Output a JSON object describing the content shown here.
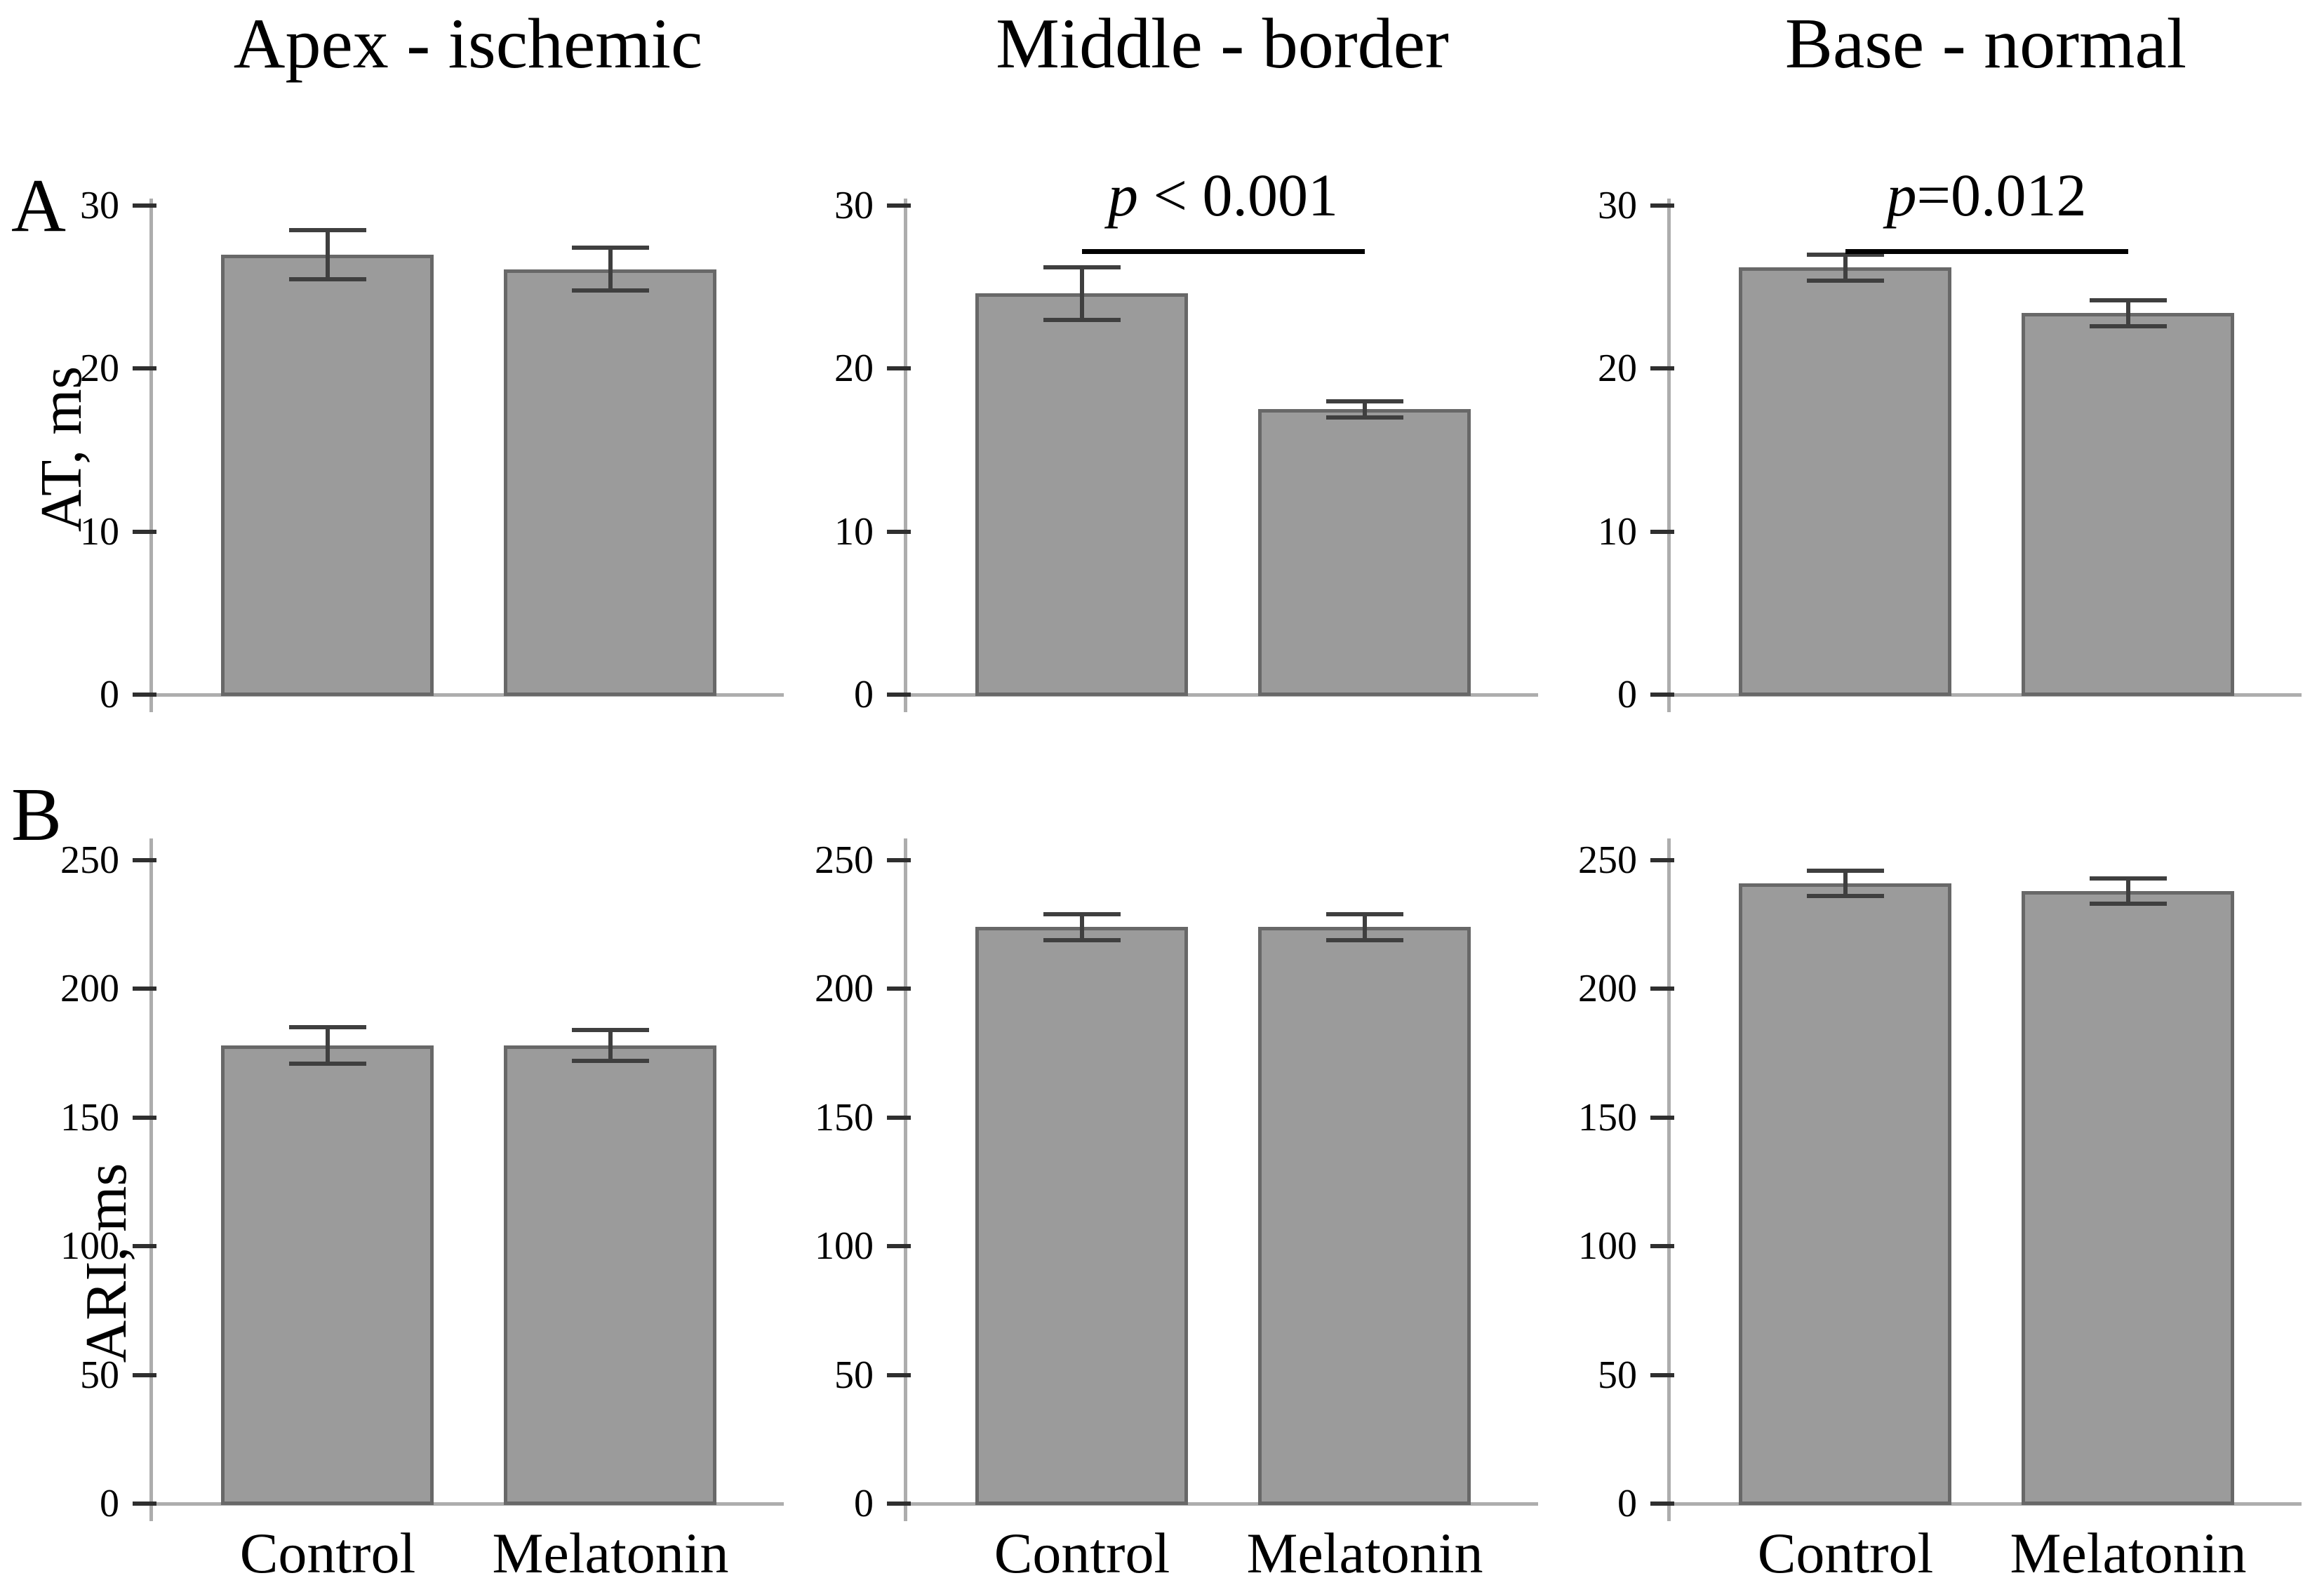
{
  "figure": {
    "panel_labels": {
      "a": "A",
      "b": "B"
    },
    "row_a_ylabel": "AT, ms",
    "row_b_ylabel": "ARI, ms",
    "column_titles": [
      "Apex - ischemic",
      "Middle - border",
      "Base - normal"
    ],
    "categories": [
      "Control",
      "Melatonin"
    ],
    "colors": {
      "background": "#ffffff",
      "bar_fill": "#9b9b9b",
      "bar_border": "#686868",
      "error_bar": "#3f3f3f",
      "axis": "#adadad",
      "tick": "#2f2f2f",
      "text": "#000000",
      "significance_line": "#000000"
    }
  },
  "chart_data": [
    {
      "id": "at-apex",
      "type": "bar",
      "row": "A",
      "col": 0,
      "title": "Apex - ischemic",
      "ylabel": "AT, ms",
      "ylim": [
        0,
        30
      ],
      "yticks": [
        0,
        10,
        20,
        30
      ],
      "grid": false,
      "categories": [
        "Control",
        "Melatonin"
      ],
      "values": [
        27.0,
        26.1
      ],
      "errors": [
        1.5,
        1.3
      ],
      "significance": null
    },
    {
      "id": "at-middle",
      "type": "bar",
      "row": "A",
      "col": 1,
      "title": "Middle - border",
      "ylabel": "AT, ms",
      "ylim": [
        0,
        30
      ],
      "yticks": [
        0,
        10,
        20,
        30
      ],
      "grid": false,
      "categories": [
        "Control",
        "Melatonin"
      ],
      "values": [
        24.6,
        17.5
      ],
      "errors": [
        1.6,
        0.5
      ],
      "significance": "p < 0.001"
    },
    {
      "id": "at-base",
      "type": "bar",
      "row": "A",
      "col": 2,
      "title": "Base - normal",
      "ylabel": "AT, ms",
      "ylim": [
        0,
        30
      ],
      "yticks": [
        0,
        10,
        20,
        30
      ],
      "grid": false,
      "categories": [
        "Control",
        "Melatonin"
      ],
      "values": [
        26.2,
        23.4
      ],
      "errors": [
        0.8,
        0.8
      ],
      "significance": "p=0.012"
    },
    {
      "id": "ari-apex",
      "type": "bar",
      "row": "B",
      "col": 0,
      "title": "Apex - ischemic",
      "ylabel": "ARI, ms",
      "ylim": [
        0,
        250
      ],
      "yticks": [
        0,
        50,
        100,
        150,
        200,
        250
      ],
      "grid": false,
      "categories": [
        "Control",
        "Melatonin"
      ],
      "values": [
        178,
        178
      ],
      "errors": [
        7,
        6
      ],
      "significance": null
    },
    {
      "id": "ari-middle",
      "type": "bar",
      "row": "B",
      "col": 1,
      "title": "Middle - border",
      "ylabel": "ARI, ms",
      "ylim": [
        0,
        250
      ],
      "yticks": [
        0,
        50,
        100,
        150,
        200,
        250
      ],
      "grid": false,
      "categories": [
        "Control",
        "Melatonin"
      ],
      "values": [
        224,
        224
      ],
      "errors": [
        5,
        5
      ],
      "significance": null
    },
    {
      "id": "ari-base",
      "type": "bar",
      "row": "B",
      "col": 2,
      "title": "Base - normal",
      "ylabel": "ARI, ms",
      "ylim": [
        0,
        250
      ],
      "yticks": [
        0,
        50,
        100,
        150,
        200,
        250
      ],
      "grid": false,
      "categories": [
        "Control",
        "Melatonin"
      ],
      "values": [
        241,
        238
      ],
      "errors": [
        5,
        5
      ],
      "significance": null
    }
  ]
}
